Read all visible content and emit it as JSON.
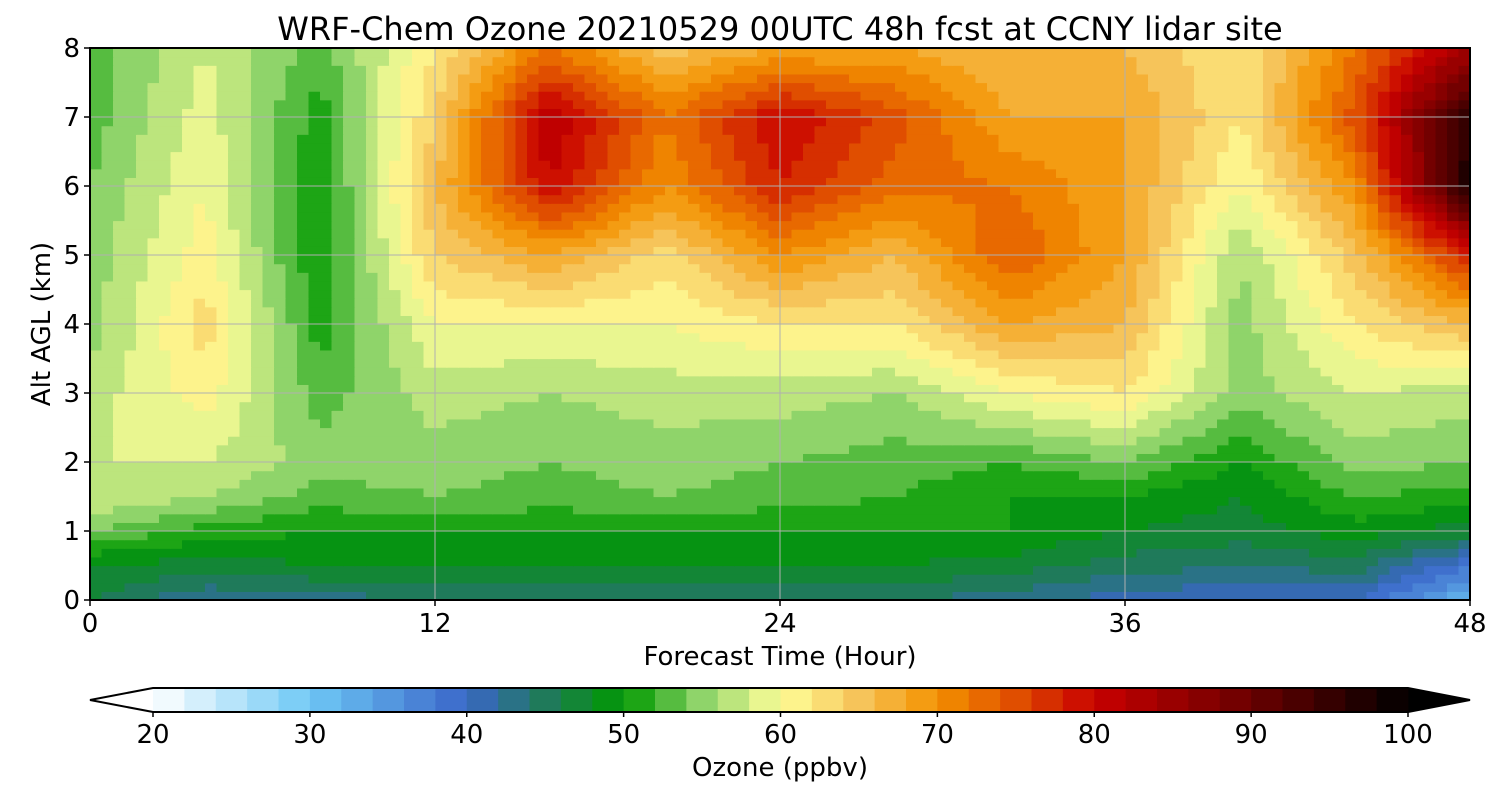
{
  "chart_data": {
    "type": "heatmap",
    "title": "WRF-Chem Ozone  20210529 00UTC 48h fcst at CCNY lidar site",
    "xlabel": "Forecast Time (Hour)",
    "ylabel": "Alt AGL (km)",
    "xlim": [
      0,
      48
    ],
    "ylim": [
      0,
      8
    ],
    "x_ticks": [
      "0",
      "12",
      "24",
      "36",
      "48"
    ],
    "y_ticks": [
      "0",
      "1",
      "2",
      "3",
      "4",
      "5",
      "6",
      "7",
      "8"
    ],
    "grid": true,
    "colorbar": {
      "label": "Ozone  (ppbv)",
      "min": 20,
      "max": 100,
      "extend": "both",
      "ticks": [
        "20",
        "30",
        "40",
        "50",
        "60",
        "70",
        "80",
        "90",
        "100"
      ],
      "colormap": [
        {
          "value": 20,
          "color": "#ffffff"
        },
        {
          "value": 30,
          "color": "#6ec8f5"
        },
        {
          "value": 40,
          "color": "#3a66c8"
        },
        {
          "value": 45,
          "color": "#1f7a5a"
        },
        {
          "value": 50,
          "color": "#009900"
        },
        {
          "value": 55,
          "color": "#8fd46a"
        },
        {
          "value": 60,
          "color": "#ffff99"
        },
        {
          "value": 65,
          "color": "#f6c45a"
        },
        {
          "value": 70,
          "color": "#f39200"
        },
        {
          "value": 75,
          "color": "#e04e00"
        },
        {
          "value": 80,
          "color": "#c80000"
        },
        {
          "value": 90,
          "color": "#6a0000"
        },
        {
          "value": 100,
          "color": "#000000"
        }
      ]
    },
    "x_hours": [
      0,
      4,
      8,
      12,
      16,
      20,
      24,
      28,
      32,
      36,
      40,
      44,
      48
    ],
    "y_km": [
      0,
      0.5,
      1,
      1.5,
      2,
      3,
      4,
      5,
      6,
      7,
      8
    ],
    "values_ppbv": [
      [
        46,
        42,
        43,
        44,
        44,
        44,
        44,
        44,
        43,
        41,
        40,
        40,
        32
      ],
      [
        48,
        47,
        48,
        48,
        48,
        48,
        48,
        48,
        47,
        45,
        44,
        45,
        38
      ],
      [
        54,
        51,
        50,
        50,
        50,
        50,
        50,
        50,
        50,
        48,
        47,
        49,
        47
      ],
      [
        58,
        56,
        53,
        54,
        53,
        54,
        53,
        52,
        50,
        50,
        48,
        52,
        51
      ],
      [
        58,
        58,
        55,
        55,
        54,
        55,
        54,
        53,
        52,
        54,
        50,
        55,
        54
      ],
      [
        57,
        61,
        53,
        57,
        56,
        57,
        57,
        56,
        60,
        62,
        55,
        58,
        57
      ],
      [
        55,
        63,
        51,
        60,
        60,
        60,
        62,
        62,
        68,
        66,
        55,
        62,
        66
      ],
      [
        55,
        61,
        50,
        64,
        68,
        63,
        70,
        66,
        74,
        68,
        56,
        65,
        78
      ],
      [
        54,
        60,
        50,
        66,
        80,
        70,
        78,
        73,
        72,
        68,
        60,
        70,
        98
      ],
      [
        53,
        59,
        51,
        64,
        82,
        72,
        80,
        75,
        68,
        68,
        62,
        75,
        96
      ],
      [
        53,
        58,
        53,
        62,
        72,
        65,
        68,
        68,
        66,
        66,
        62,
        72,
        84
      ]
    ]
  }
}
